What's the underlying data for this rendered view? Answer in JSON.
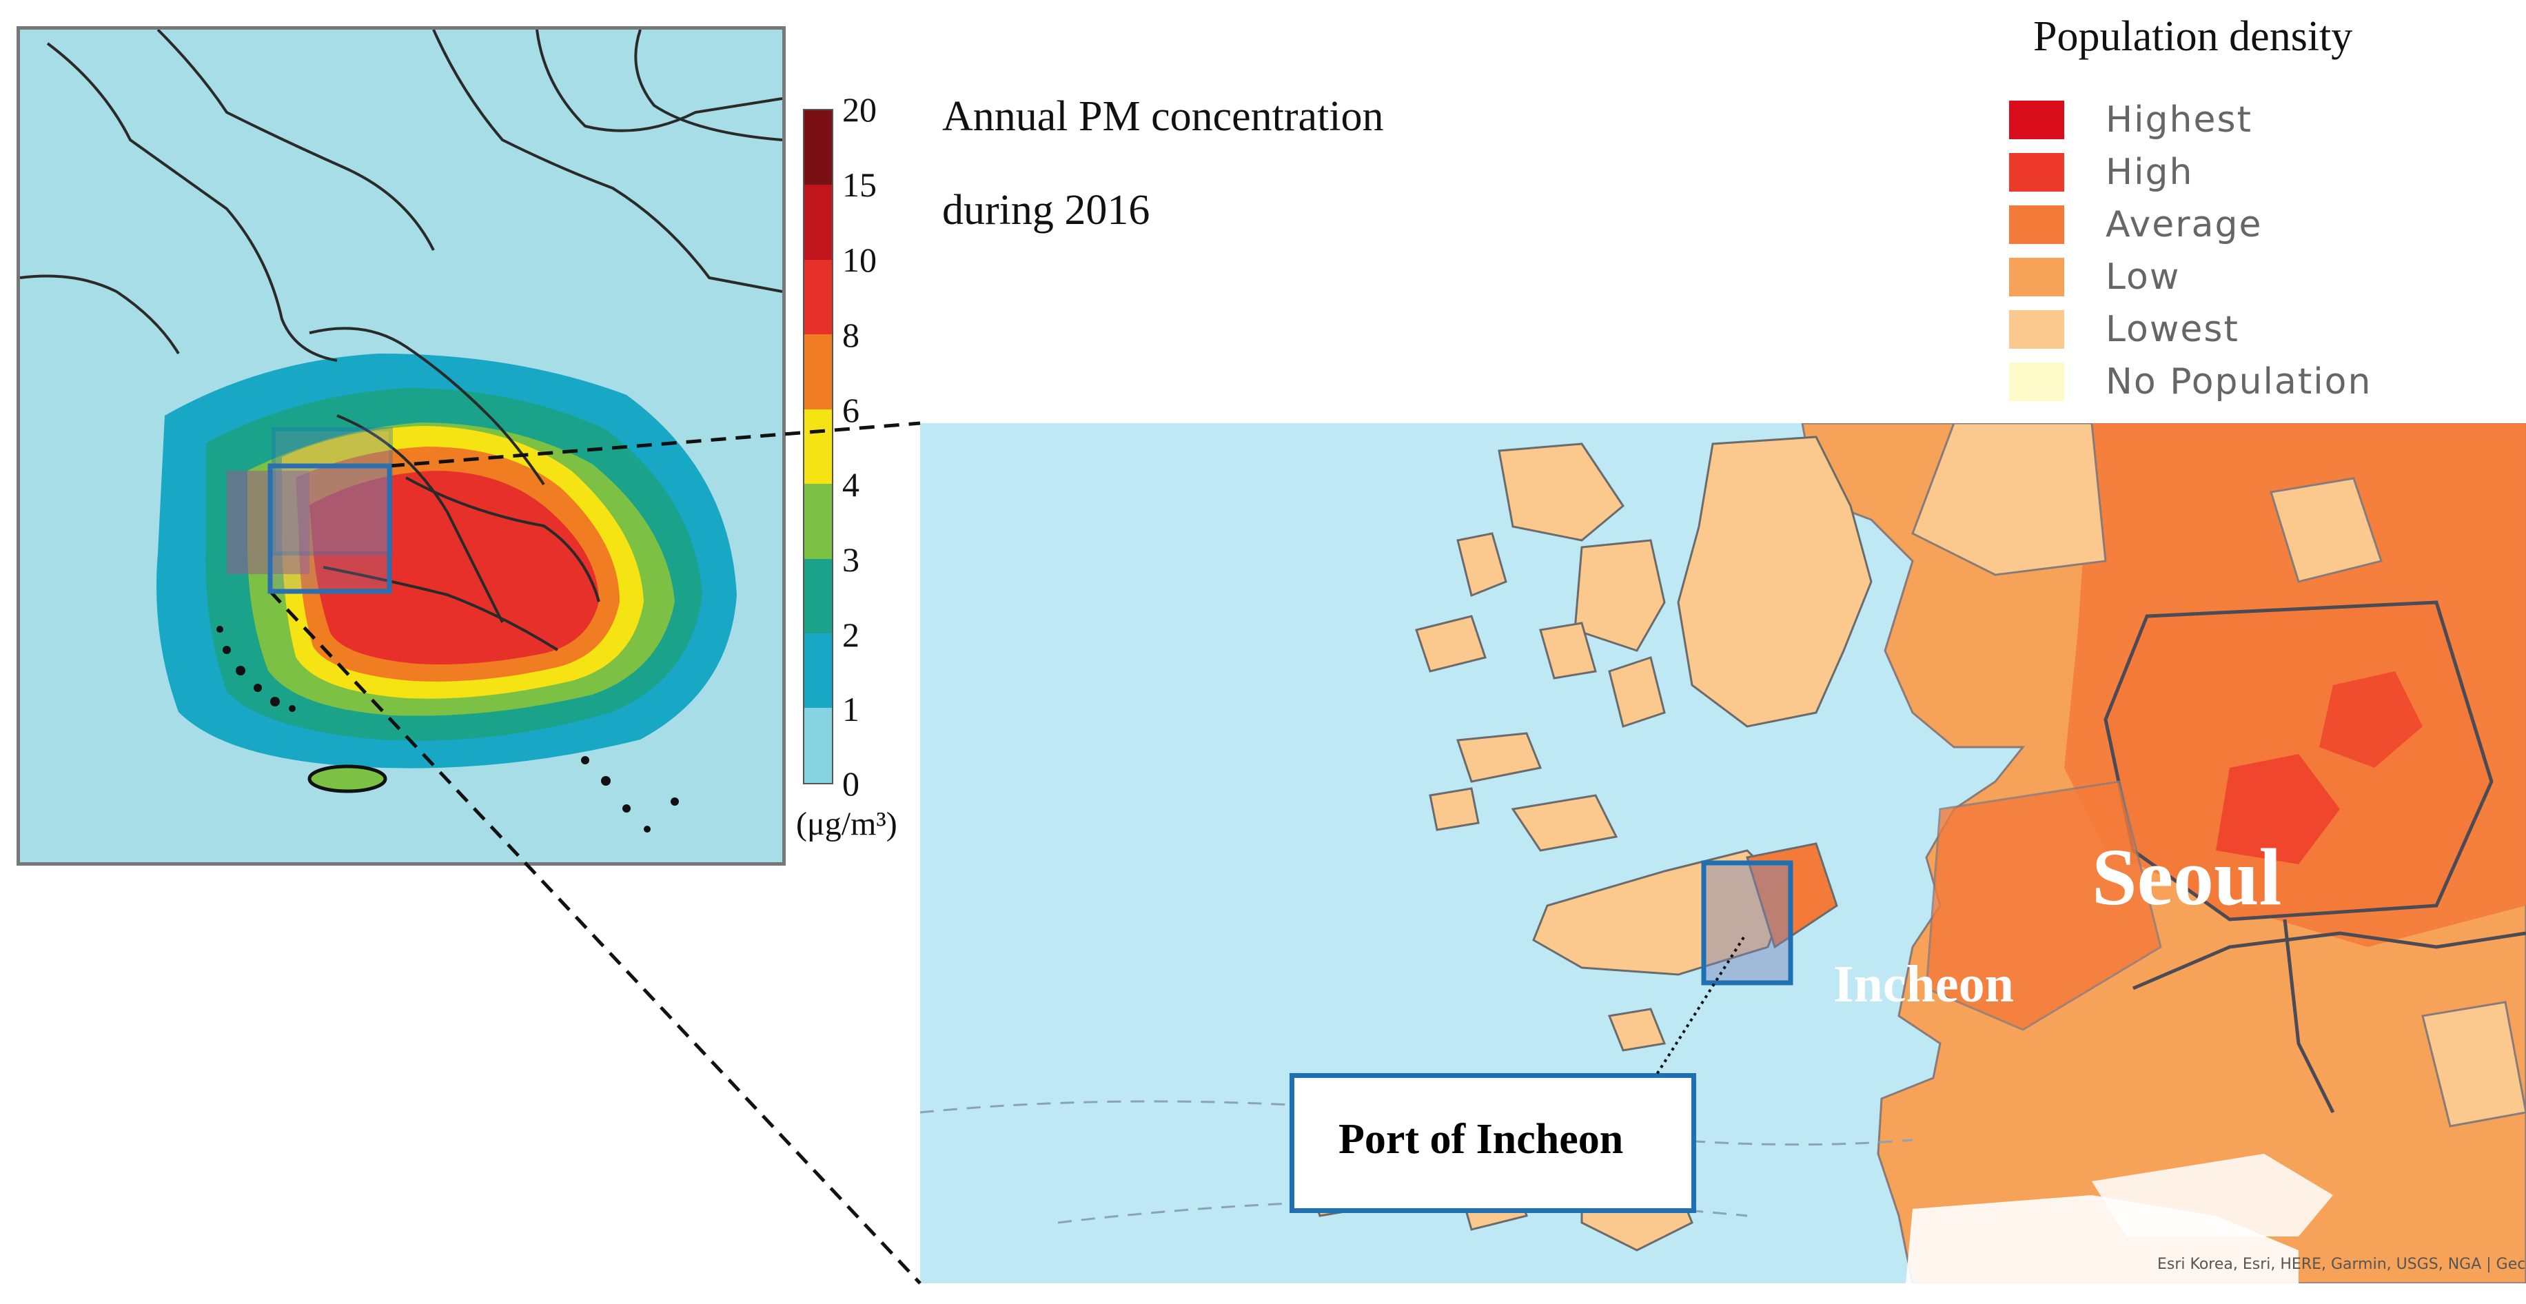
{
  "pm_map": {
    "title_line1": "Annual PM concentration",
    "title_line2": "during 2016",
    "colorbar": {
      "ticks": [
        "20",
        "15",
        "10",
        "8",
        "6",
        "4",
        "3",
        "2",
        "1",
        "0"
      ],
      "unit": "(μg/m³)",
      "colors": [
        "#7a0f14",
        "#c0151b",
        "#e8302a",
        "#f07d22",
        "#f5e313",
        "#7cc143",
        "#1aa38a",
        "#19a7c6",
        "#86d4e2"
      ]
    }
  },
  "population_legend": {
    "title": "Population density",
    "items": [
      {
        "label": "Highest",
        "color": "#d90d1c"
      },
      {
        "label": "High",
        "color": "#ee3a2a"
      },
      {
        "label": "Average",
        "color": "#f47a3a"
      },
      {
        "label": "Low",
        "color": "#f7a259"
      },
      {
        "label": "Lowest",
        "color": "#fbc98d"
      },
      {
        "label": "No Population",
        "color": "#fdfbc9"
      }
    ]
  },
  "population_map": {
    "label_city": "Seoul",
    "label_incheon": "Incheon",
    "port_label": "Port of Incheon",
    "attribution": "Esri Korea, Esri, HERE, Garmin, USGS, NGA | Gec"
  }
}
